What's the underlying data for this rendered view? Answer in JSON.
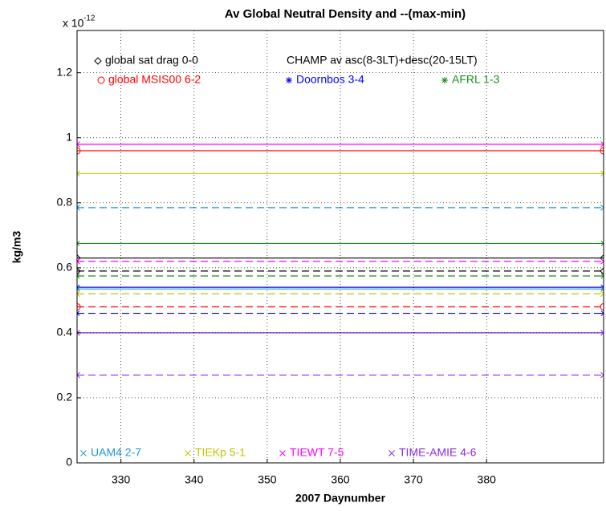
{
  "chart_data": {
    "type": "hline",
    "title": "Av Global Neutral Density and --(max-min)",
    "y_label": "kg/m3",
    "x_label": "2007 Daynumber",
    "y_multiplier": {
      "base": "x 10",
      "exponent": "-12"
    },
    "xlim": [
      324,
      396
    ],
    "xticks": [
      330,
      340,
      350,
      360,
      370,
      380
    ],
    "ylim": [
      0,
      1.33
    ],
    "yticks": [
      0,
      0.2,
      0.4,
      0.6,
      0.8,
      1,
      1.2
    ],
    "grid": true,
    "annotation": "CHAMP av asc(8-3LT)+desc(20-15LT)",
    "series": [
      {
        "name": "global sat drag 0-0",
        "color": "#000000",
        "marker": "diamond",
        "values": [
          0.63,
          0.59
        ]
      },
      {
        "name": "global MSIS00 6-2",
        "color": "#ff0000",
        "marker": "circle",
        "values": [
          0.96,
          0.48
        ]
      },
      {
        "name": "Doornbos 3-4",
        "color": "#0000ff",
        "marker": "star",
        "values": [
          0.54,
          0.46
        ]
      },
      {
        "name": "AFRL 1-3",
        "color": "#1a8c1a",
        "marker": "star",
        "values": [
          0.675,
          0.575
        ]
      },
      {
        "name": "UAM4 2-7",
        "color": "#1e96d8",
        "marker": "x",
        "values": [
          0.535,
          0.785
        ]
      },
      {
        "name": "TIEKp 5-1",
        "color": "#c4c400",
        "marker": "x",
        "values": [
          0.89,
          0.52
        ]
      },
      {
        "name": "TIEWT 7-5",
        "color": "#ff00ff",
        "marker": "x",
        "values": [
          0.98,
          0.62
        ]
      },
      {
        "name": "TIME-AMIE 4-6",
        "color": "#8a2be2",
        "marker": "x",
        "values": [
          0.4,
          0.27
        ]
      }
    ]
  }
}
